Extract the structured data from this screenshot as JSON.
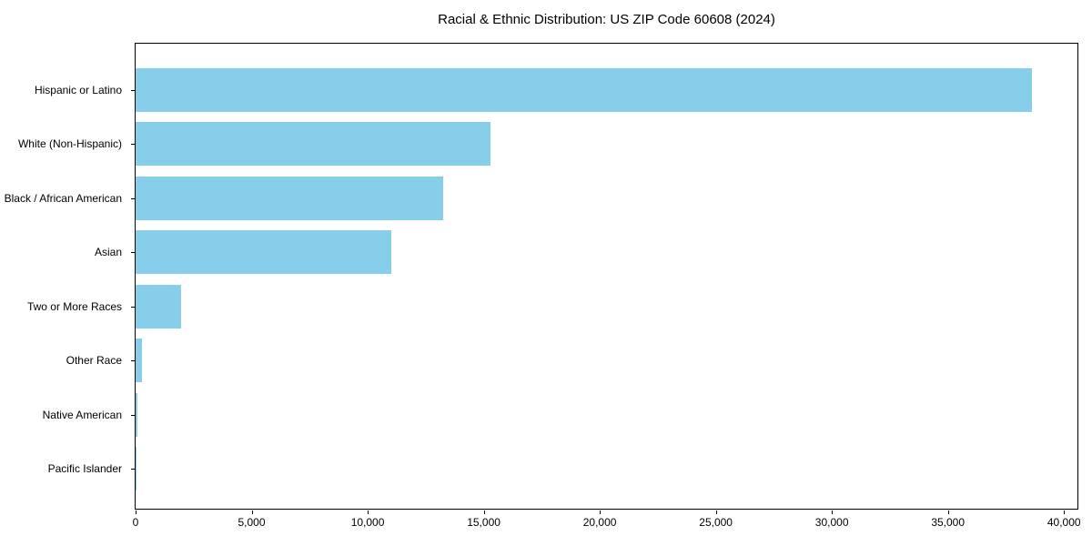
{
  "title": "Racial & Ethnic Distribution: US ZIP Code 60608 (2024)",
  "colors": {
    "bar": "#87CEEB",
    "axis": "#000000",
    "background": "#FFFFFF",
    "text": "#000000"
  },
  "chart_data": {
    "type": "bar",
    "orientation": "horizontal",
    "title": "Racial & Ethnic Distribution: US ZIP Code 60608 (2024)",
    "categories": [
      "Hispanic or Latino",
      "White (Non-Hispanic)",
      "Black / African American",
      "Asian",
      "Two or More Races",
      "Other Race",
      "Native American",
      "Pacific Islander"
    ],
    "values": [
      38630,
      15300,
      13270,
      11000,
      1960,
      280,
      60,
      20
    ],
    "xlabel": "",
    "ylabel": "",
    "xlim": [
      0,
      40580
    ],
    "xticks": {
      "values": [
        0,
        5000,
        10000,
        15000,
        20000,
        25000,
        30000,
        35000,
        40000
      ],
      "labels": [
        "0",
        "5,000",
        "10,000",
        "15,000",
        "20,000",
        "25,000",
        "30,000",
        "35,000",
        "40,000"
      ]
    },
    "bar_color": "#87CEEB",
    "grid": false,
    "legend": "none"
  }
}
